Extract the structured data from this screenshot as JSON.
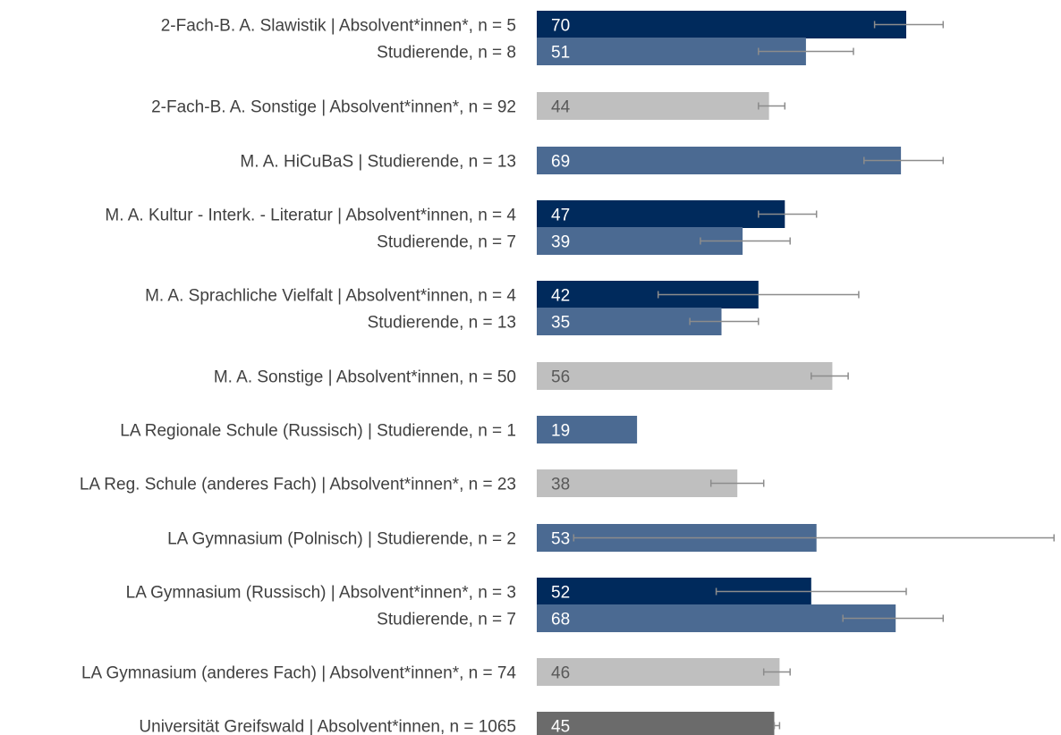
{
  "chart_data": {
    "type": "bar",
    "orientation": "horizontal",
    "title": "",
    "xlabel": "",
    "ylabel": "",
    "colors": {
      "absolvent_slawistik": "#002a5c",
      "studierende_slawistik": "#4b6a92",
      "absolvent_sonstige": "#bfbfbf",
      "universitaet": "#6b6b6b",
      "error_bar": "#8c8c8c",
      "label_text": "#404040",
      "value_text_dark_bar": "#ffffff",
      "value_text_light_bar": "#595959"
    },
    "bars": [
      {
        "label": "2-Fach-B. A. Slawistik | Absolvent*innen*, n = 5",
        "value": 70,
        "err_low": 64,
        "err_high": 77,
        "color": "absolvent_slawistik"
      },
      {
        "label": "Studierende, n = 8",
        "value": 51,
        "err_low": 42,
        "err_high": 60,
        "color": "studierende_slawistik"
      },
      {
        "label": "2-Fach-B. A. Sonstige | Absolvent*innen*, n = 92",
        "value": 44,
        "err_low": 42,
        "err_high": 47,
        "color": "absolvent_sonstige"
      },
      {
        "label": "M. A. HiCuBaS | Studierende, n = 13",
        "value": 69,
        "err_low": 62,
        "err_high": 77,
        "color": "studierende_slawistik"
      },
      {
        "label": "M. A. Kultur - Interk. - Literatur | Absolvent*innen, n = 4",
        "value": 47,
        "err_low": 42,
        "err_high": 53,
        "color": "absolvent_slawistik"
      },
      {
        "label": "Studierende, n = 7",
        "value": 39,
        "err_low": 31,
        "err_high": 48,
        "color": "studierende_slawistik"
      },
      {
        "label": "M. A. Sprachliche Vielfalt | Absolvent*innen, n = 4",
        "value": 42,
        "err_low": 23,
        "err_high": 61,
        "color": "absolvent_slawistik"
      },
      {
        "label": "Studierende, n = 13",
        "value": 35,
        "err_low": 29,
        "err_high": 42,
        "color": "studierende_slawistik"
      },
      {
        "label": "M. A. Sonstige | Absolvent*innen, n = 50",
        "value": 56,
        "err_low": 52,
        "err_high": 59,
        "color": "absolvent_sonstige"
      },
      {
        "label": "LA Regionale Schule (Russisch) | Studierende, n = 1",
        "value": 19,
        "err_low": null,
        "err_high": null,
        "color": "studierende_slawistik"
      },
      {
        "label": "LA Reg. Schule (anderes Fach) | Absolvent*innen*, n = 23",
        "value": 38,
        "err_low": 33,
        "err_high": 43,
        "color": "absolvent_sonstige"
      },
      {
        "label": "LA Gymnasium (Polnisch) | Studierende, n = 2",
        "value": 53,
        "err_low": 7,
        "err_high": 98,
        "color": "studierende_slawistik"
      },
      {
        "label": "LA Gymnasium (Russisch) | Absolvent*innen*, n = 3",
        "value": 52,
        "err_low": 34,
        "err_high": 70,
        "color": "absolvent_slawistik"
      },
      {
        "label": "Studierende, n = 7",
        "value": 68,
        "err_low": 58,
        "err_high": 77,
        "color": "studierende_slawistik"
      },
      {
        "label": "LA Gymnasium (anderes Fach) | Absolvent*innen*, n = 74",
        "value": 46,
        "err_low": 43,
        "err_high": 48,
        "color": "absolvent_sonstige"
      },
      {
        "label": "Universität Greifswald | Absolvent*innen, n = 1065",
        "value": 45,
        "err_low": 45,
        "err_high": 46,
        "color": "universitaet"
      }
    ]
  }
}
